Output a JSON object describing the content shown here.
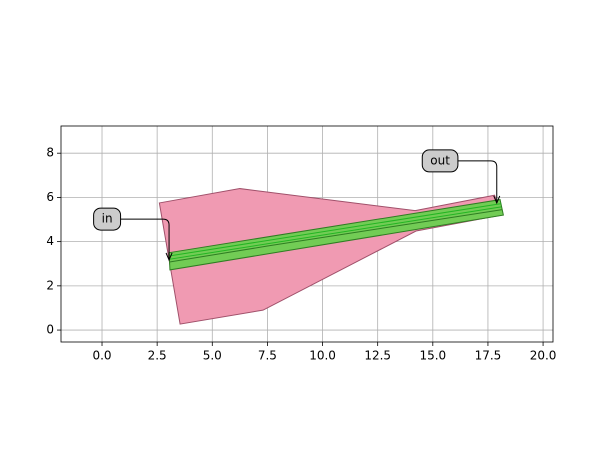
{
  "chart_data": {
    "type": "polygon",
    "xlim": [
      -1.86,
      20.45
    ],
    "ylim": [
      -0.54,
      9.23
    ],
    "xticks": [
      {
        "value": 0,
        "label": "0.0"
      },
      {
        "value": 2.5,
        "label": "2.5"
      },
      {
        "value": 5,
        "label": "5.0"
      },
      {
        "value": 7.5,
        "label": "7.5"
      },
      {
        "value": 10,
        "label": "10.0"
      },
      {
        "value": 12.5,
        "label": "12.5"
      },
      {
        "value": 15,
        "label": "15.0"
      },
      {
        "value": 17.5,
        "label": "17.5"
      },
      {
        "value": 20,
        "label": "20.0"
      }
    ],
    "yticks": [
      0,
      2,
      4,
      6,
      8
    ],
    "grid": true,
    "shapes": [
      {
        "color": "#f09ab2",
        "edgecolor": "#a0506a",
        "x": [
          2.6,
          6.25,
          14.2,
          17.8,
          18.1,
          14.24,
          7.3,
          3.54
        ],
        "y": [
          5.75,
          6.4,
          5.4,
          6.1,
          5.2,
          4.48,
          0.9,
          0.27
        ]
      },
      {
        "color": "#72cc55",
        "edgecolor": "#2e7d22",
        "x": [
          3.04,
          18.05,
          18.2,
          3.08
        ],
        "y": [
          3.5,
          5.9,
          5.2,
          2.72
        ]
      }
    ],
    "lines": [
      {
        "color": "#22b522",
        "x": [
          3.04,
          18.1
        ],
        "y": [
          3.35,
          5.72
        ]
      },
      {
        "color": "#22b522",
        "x": [
          3.04,
          18.1
        ],
        "y": [
          3.2,
          5.57
        ]
      },
      {
        "color": "#2e7d22",
        "x": [
          3.06,
          7.5,
          18.15
        ],
        "y": [
          3.08,
          3.8,
          5.45
        ]
      }
    ],
    "annotations": [
      {
        "text": "in",
        "xytext": [
          0.23,
          5.02
        ],
        "xy": [
          3.04,
          3.17
        ]
      },
      {
        "text": "out",
        "xytext": [
          15.33,
          7.65
        ],
        "xy": [
          17.9,
          5.75
        ]
      }
    ]
  }
}
